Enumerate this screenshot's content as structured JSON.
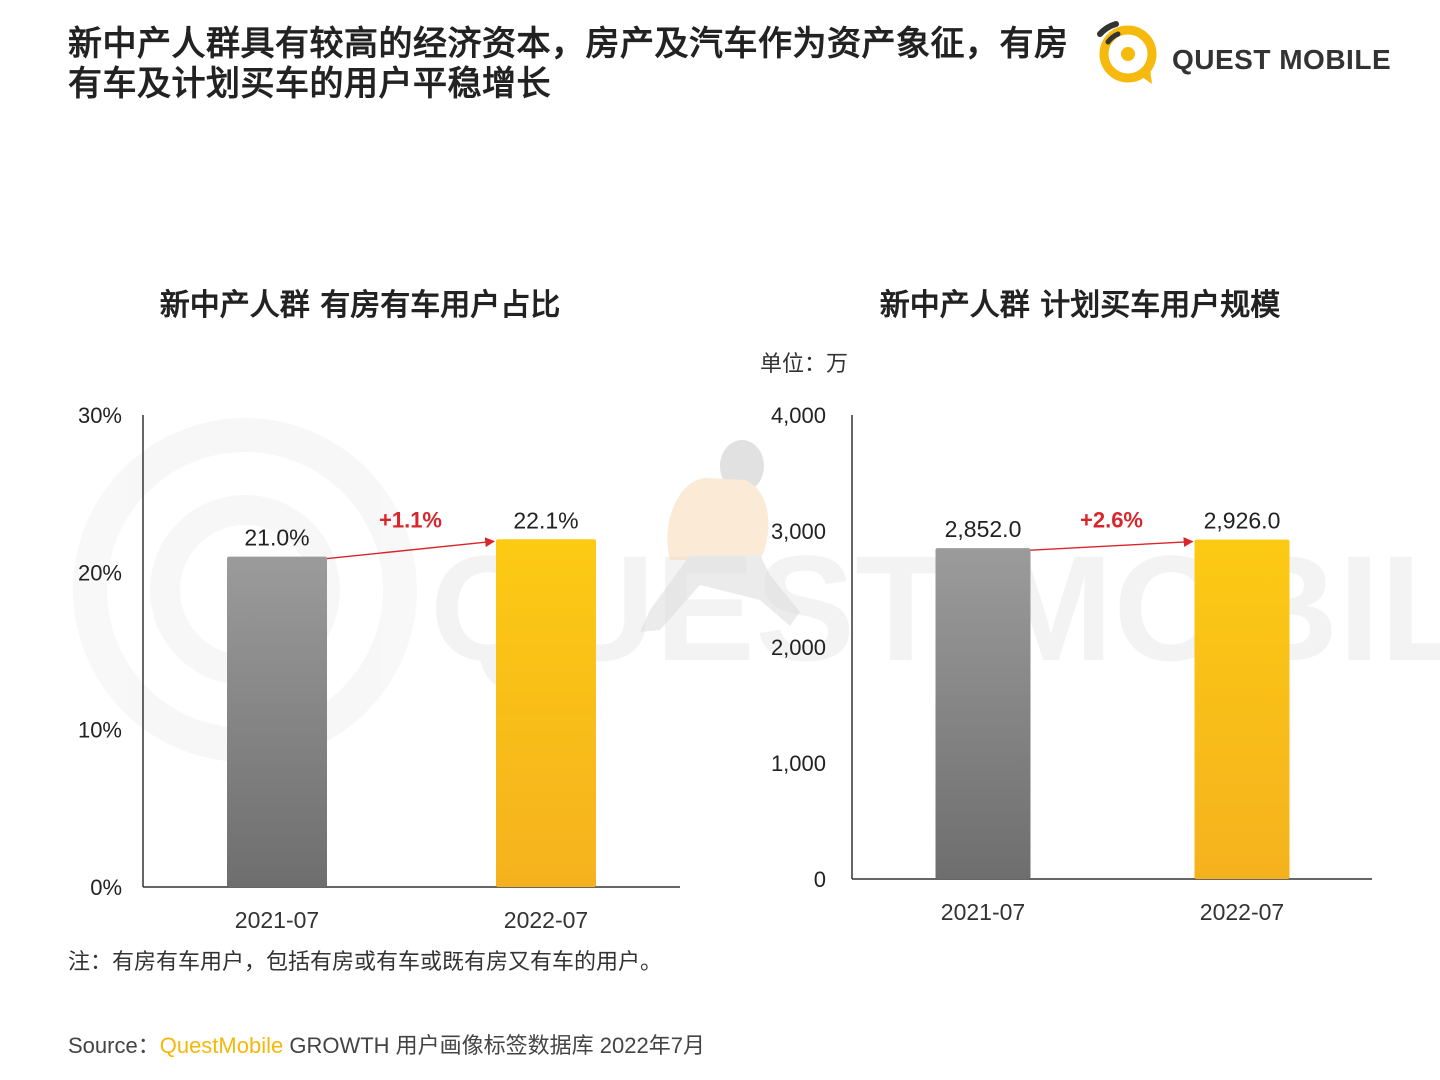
{
  "header": {
    "title": "新中产人群具有较高的经济资本，房产及汽车作为资产象征，有房有车及计划买车的用户平稳增长",
    "logo_text": "QUEST MOBILE"
  },
  "watermark_text": "QUEST MOBILE",
  "colors": {
    "bar_2021": "#8c8c8c",
    "bar_2022": "#f8c212",
    "growth_arrow": "#d9262c",
    "brand": "#f5b80a"
  },
  "chart_data": [
    {
      "type": "bar",
      "title": "新中产人群 有房有车用户占比",
      "categories": [
        "2021-07",
        "2022-07"
      ],
      "values": [
        21.0,
        22.1
      ],
      "value_labels": [
        "21.0%",
        "22.1%"
      ],
      "yticks": [
        "0%",
        "10%",
        "20%",
        "30%"
      ],
      "ylim": [
        0,
        30
      ],
      "growth_label": "+1.1%",
      "grid": false
    },
    {
      "type": "bar",
      "title": "新中产人群 计划买车用户规模",
      "unit_label": "单位：万",
      "categories": [
        "2021-07",
        "2022-07"
      ],
      "values": [
        2852.0,
        2926.0
      ],
      "value_labels": [
        "2,852.0",
        "2,926.0"
      ],
      "yticks": [
        "0",
        "1,000",
        "2,000",
        "3,000",
        "4,000"
      ],
      "ylim": [
        0,
        4000
      ],
      "growth_label": "+2.6%",
      "grid": false
    }
  ],
  "footer": {
    "note": "注：有房有车用户，包括有房或有车或既有房又有车的用户。",
    "source_prefix": "Source：",
    "source_brand": "QuestMobile",
    "source_rest": " GROWTH 用户画像标签数据库 2022年7月"
  }
}
